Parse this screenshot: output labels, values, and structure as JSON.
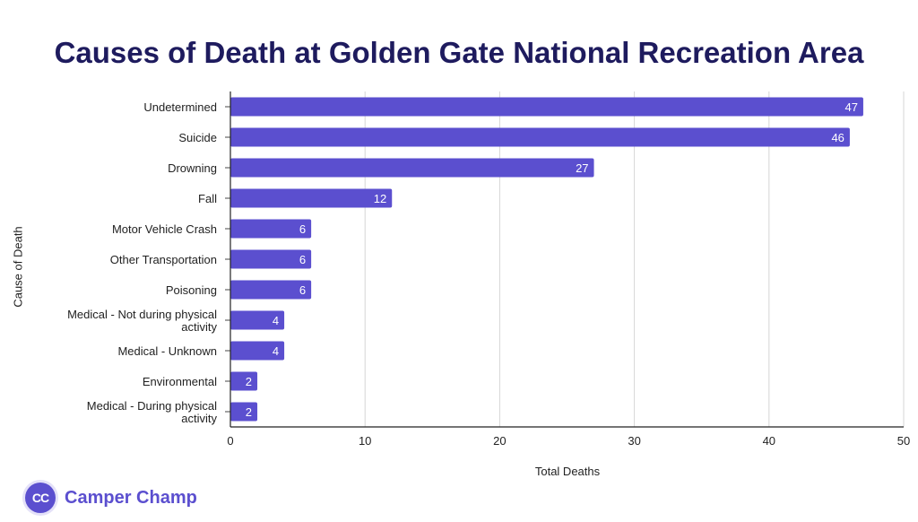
{
  "title": "Causes of Death at Golden Gate National Recreation Area",
  "brand": {
    "logo_text": "CC",
    "name": "Camper Champ"
  },
  "colors": {
    "bar": "#5b4fcf",
    "title": "#1e1b5e",
    "brand": "#5b4fcf"
  },
  "chart_data": {
    "type": "bar",
    "orientation": "horizontal",
    "title": "Causes of Death at Golden Gate National Recreation Area",
    "xlabel": "Total Deaths",
    "ylabel": "Cause of Death",
    "xlim": [
      0,
      50
    ],
    "xticks": [
      "0",
      "10",
      "20",
      "30",
      "40",
      "50"
    ],
    "grid": true,
    "categories": [
      [
        "Undetermined"
      ],
      [
        "Suicide"
      ],
      [
        "Drowning"
      ],
      [
        "Fall"
      ],
      [
        "Motor Vehicle Crash"
      ],
      [
        "Other Transportation"
      ],
      [
        "Poisoning"
      ],
      [
        "Medical - Not during physical",
        "activity"
      ],
      [
        "Medical - Unknown"
      ],
      [
        "Environmental"
      ],
      [
        "Medical - During physical",
        "activity"
      ]
    ],
    "values": [
      47,
      46,
      27,
      12,
      6,
      6,
      6,
      4,
      4,
      2,
      2
    ]
  }
}
